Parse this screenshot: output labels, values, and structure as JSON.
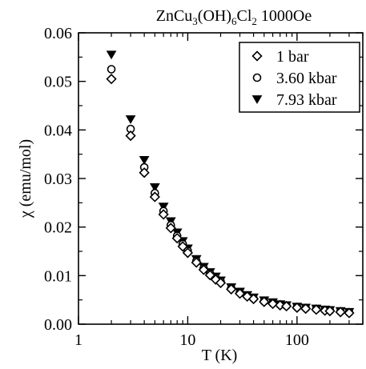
{
  "chart_data": {
    "type": "scatter",
    "title": {
      "main": "ZnCu",
      "sub1": "3",
      "mid": "(OH)",
      "sub2": "6",
      "mid2": "Cl",
      "sub3": "2",
      "tail": " 1000Oe"
    },
    "xlabel": "T (K)",
    "ylabel": "χ (emu/mol)",
    "xscale": "log",
    "xlim": [
      1,
      400
    ],
    "ylim": [
      0,
      0.06
    ],
    "xticks": [
      {
        "value": 1,
        "label": "1"
      },
      {
        "value": 10,
        "label": "10"
      },
      {
        "value": 100,
        "label": "100"
      }
    ],
    "yticks": [
      {
        "value": 0.0,
        "label": "0.00"
      },
      {
        "value": 0.01,
        "label": "0.01"
      },
      {
        "value": 0.02,
        "label": "0.02"
      },
      {
        "value": 0.03,
        "label": "0.03"
      },
      {
        "value": 0.04,
        "label": "0.04"
      },
      {
        "value": 0.05,
        "label": "0.05"
      },
      {
        "value": 0.06,
        "label": "0.06"
      }
    ],
    "grid": false,
    "legend_position": "top-right",
    "series": [
      {
        "name": "1 bar",
        "marker": "diamond-open",
        "x": [
          2,
          3,
          4,
          5,
          6,
          7,
          8,
          9,
          10,
          12,
          14,
          16,
          18,
          20,
          25,
          30,
          35,
          40,
          50,
          60,
          70,
          80,
          100,
          120,
          150,
          180,
          200,
          250,
          300
        ],
        "y": [
          0.0505,
          0.0388,
          0.0312,
          0.0262,
          0.0226,
          0.0198,
          0.0177,
          0.016,
          0.0147,
          0.0127,
          0.0112,
          0.0101,
          0.0092,
          0.0085,
          0.0072,
          0.0063,
          0.0057,
          0.0052,
          0.0046,
          0.0042,
          0.0039,
          0.0037,
          0.0034,
          0.0032,
          0.003,
          0.0028,
          0.0027,
          0.0025,
          0.0023
        ]
      },
      {
        "name": "3.60 kbar",
        "marker": "circle-open",
        "x": [
          2,
          3,
          4,
          5,
          6,
          7,
          8,
          9,
          10,
          12,
          14,
          16,
          18,
          20,
          25,
          30,
          35,
          40,
          50,
          60,
          70,
          80,
          100,
          120,
          150,
          180,
          200,
          250,
          300
        ],
        "y": [
          0.0525,
          0.0402,
          0.0323,
          0.027,
          0.0233,
          0.0204,
          0.0182,
          0.0165,
          0.0151,
          0.013,
          0.0115,
          0.0104,
          0.0095,
          0.0088,
          0.0074,
          0.0065,
          0.0058,
          0.0053,
          0.0047,
          0.0043,
          0.004,
          0.0038,
          0.0035,
          0.0033,
          0.0031,
          0.0029,
          0.0028,
          0.0026,
          0.0024
        ]
      },
      {
        "name": "7.93 kbar",
        "marker": "triangle-down-filled",
        "x": [
          2,
          3,
          4,
          5,
          6,
          7,
          8,
          9,
          10,
          12,
          14,
          16,
          18,
          20,
          25,
          30,
          35,
          40,
          50,
          60,
          70,
          80,
          100,
          120,
          150,
          180,
          200,
          250,
          300
        ],
        "y": [
          0.0555,
          0.0422,
          0.0338,
          0.0282,
          0.0242,
          0.0212,
          0.0189,
          0.0171,
          0.0156,
          0.0134,
          0.0118,
          0.0107,
          0.0098,
          0.009,
          0.0076,
          0.0067,
          0.006,
          0.0055,
          0.0049,
          0.0045,
          0.0041,
          0.0039,
          0.0036,
          0.0034,
          0.0032,
          0.003,
          0.0029,
          0.0027,
          0.0025
        ]
      }
    ]
  }
}
